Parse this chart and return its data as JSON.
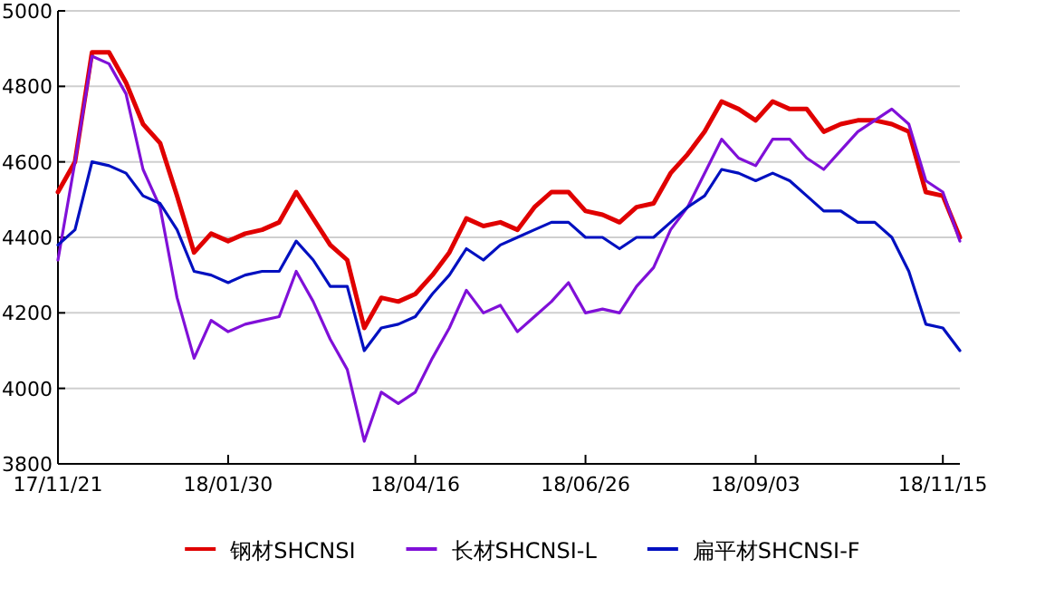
{
  "chart_data": {
    "type": "line",
    "categories": [
      "17/11/21",
      null,
      null,
      null,
      null,
      null,
      null,
      null,
      null,
      null,
      "18/01/30",
      null,
      null,
      null,
      null,
      null,
      null,
      null,
      null,
      null,
      null,
      "18/04/16",
      null,
      null,
      null,
      null,
      null,
      null,
      null,
      null,
      null,
      "18/06/26",
      null,
      null,
      null,
      null,
      null,
      null,
      null,
      null,
      null,
      "18/09/03",
      null,
      null,
      null,
      null,
      null,
      null,
      null,
      null,
      null,
      null,
      "18/11/15",
      null
    ],
    "series": [
      {
        "name": "钢材SHCNSI",
        "color": "#e00000",
        "values": [
          4520,
          4600,
          4890,
          4890,
          4810,
          4700,
          4650,
          4510,
          4360,
          4410,
          4390,
          4410,
          4420,
          4440,
          4520,
          4450,
          4380,
          4340,
          4160,
          4240,
          4230,
          4250,
          4300,
          4360,
          4450,
          4430,
          4440,
          4420,
          4480,
          4520,
          4520,
          4470,
          4460,
          4440,
          4480,
          4490,
          4570,
          4620,
          4680,
          4760,
          4740,
          4710,
          4760,
          4740,
          4740,
          4680,
          4700,
          4710,
          4710,
          4700,
          4680,
          4520,
          4510,
          4400
        ]
      },
      {
        "name": "长材SHCNSI-L",
        "color": "#8010d8",
        "values": [
          4340,
          4600,
          4880,
          4860,
          4780,
          4580,
          4480,
          4240,
          4080,
          4180,
          4150,
          4170,
          4180,
          4190,
          4310,
          4230,
          4130,
          4050,
          3860,
          3990,
          3960,
          3990,
          4080,
          4160,
          4260,
          4200,
          4220,
          4150,
          4190,
          4230,
          4280,
          4200,
          4210,
          4200,
          4270,
          4320,
          4420,
          4480,
          4570,
          4660,
          4610,
          4590,
          4660,
          4660,
          4610,
          4580,
          4630,
          4680,
          4710,
          4740,
          4700,
          4550,
          4520,
          4390
        ]
      },
      {
        "name": "扁平材SHCNSI-F",
        "color": "#0010c0",
        "values": [
          4380,
          4420,
          4600,
          4590,
          4570,
          4510,
          4490,
          4420,
          4310,
          4300,
          4280,
          4300,
          4310,
          4310,
          4390,
          4340,
          4270,
          4270,
          4100,
          4160,
          4170,
          4190,
          4250,
          4300,
          4370,
          4340,
          4380,
          4400,
          4420,
          4440,
          4440,
          4400,
          4400,
          4370,
          4400,
          4400,
          4440,
          4480,
          4510,
          4580,
          4570,
          4550,
          4570,
          4550,
          4510,
          4470,
          4470,
          4440,
          4440,
          4400,
          4310,
          4170,
          4160,
          4100
        ]
      }
    ],
    "ylim": [
      3800,
      5000
    ],
    "yticks": [
      3800,
      4000,
      4200,
      4400,
      4600,
      4800,
      5000
    ],
    "grid": "y",
    "legend": "bottom"
  }
}
